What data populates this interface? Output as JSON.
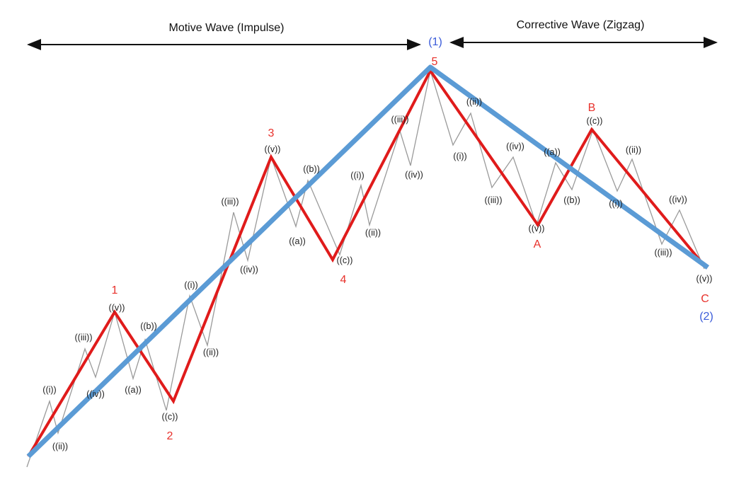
{
  "headers": {
    "motive": "Motive Wave (Impulse)",
    "corrective": "Corrective Wave (Zigzag)"
  },
  "degree_labels": [
    "(1)",
    "(2)"
  ],
  "wave_labels": [
    "1",
    "2",
    "3",
    "4",
    "5",
    "A",
    "B",
    "C"
  ],
  "sub_labels": [
    "((i))",
    "((ii))",
    "((iii))",
    "((iv))",
    "((v))",
    "((a))",
    "((b))",
    "((c))",
    "((i))",
    "((ii))",
    "((iii))",
    "((iv))",
    "((v))",
    "((a))",
    "((b))",
    "((c))",
    "((i))",
    "((ii))",
    "((iii))",
    "((iv))",
    "((i))",
    "((ii))",
    "((iii))",
    "((iv))",
    "((v))",
    "((a))",
    "((b))",
    "((c))",
    "((i))",
    "((ii))",
    "((iii))",
    "((iv))",
    "((v))"
  ]
}
